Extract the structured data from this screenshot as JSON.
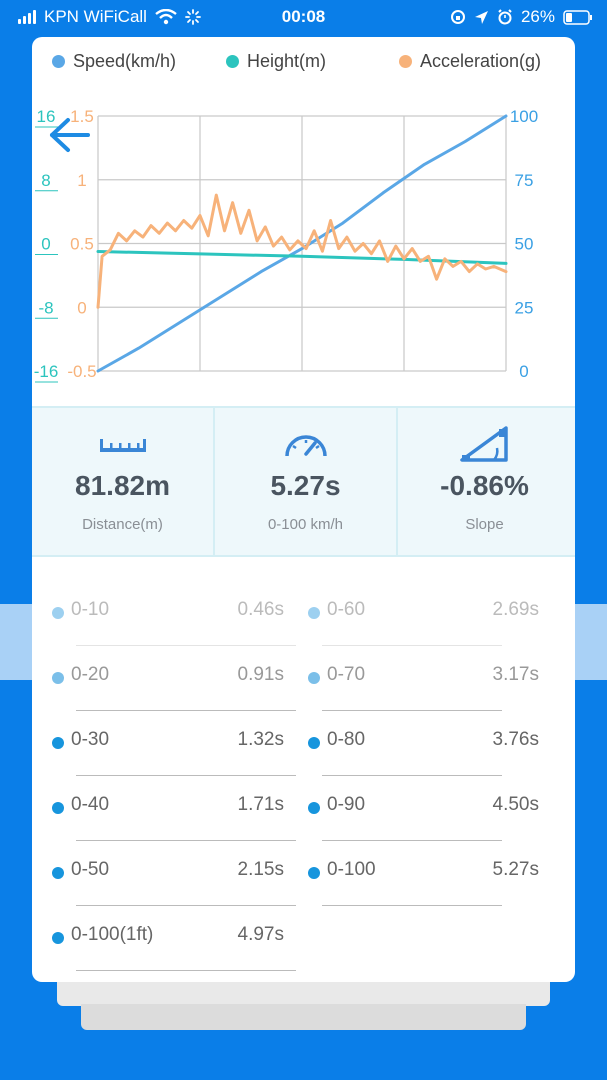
{
  "status_bar": {
    "carrier": "KPN WiFiCall",
    "time": "00:08",
    "battery": "26%"
  },
  "legend": [
    {
      "label": "Speed(km/h)",
      "color": "#5aa7e6"
    },
    {
      "label": "Height(m)",
      "color": "#2cc4be"
    },
    {
      "label": "Acceleration(g)",
      "color": "#f7b27a"
    }
  ],
  "chart_data": {
    "type": "line",
    "x_range": [
      0,
      100
    ],
    "axes": {
      "height_left": {
        "ticks": [
          "16",
          "8",
          "0",
          "-8",
          "-16"
        ],
        "range": [
          -16,
          16
        ],
        "color": "#2cc4be"
      },
      "acceleration_left": {
        "ticks": [
          "1.5",
          "1",
          "0.5",
          "0",
          "-0.5"
        ],
        "range": [
          -0.5,
          1.5
        ],
        "color": "#f7b27a"
      },
      "speed_right": {
        "ticks": [
          "100",
          "75",
          "50",
          "25",
          "0"
        ],
        "range": [
          0,
          100
        ],
        "color": "#3aa0e4"
      }
    },
    "grid": true,
    "series": [
      {
        "name": "Speed(km/h)",
        "axis": "speed_right",
        "color": "#5aa7e6",
        "x": [
          0,
          10,
          20,
          30,
          40,
          50,
          60,
          70,
          80,
          90,
          100
        ],
        "y": [
          0,
          9,
          19,
          29,
          39,
          48,
          58,
          70,
          81,
          90,
          100
        ]
      },
      {
        "name": "Height(m)",
        "axis": "height_left",
        "color": "#2cc4be",
        "x": [
          0,
          25,
          50,
          75,
          100
        ],
        "y": [
          -1.0,
          -1.3,
          -1.6,
          -2.0,
          -2.5
        ]
      },
      {
        "name": "Acceleration(g)",
        "axis": "acceleration_left",
        "color": "#f7b27a",
        "x": [
          0,
          1,
          3,
          5,
          7,
          9,
          11,
          13,
          15,
          17,
          19,
          21,
          23,
          25,
          27,
          29,
          31,
          33,
          35,
          37,
          39,
          41,
          43,
          45,
          47,
          49,
          51,
          53,
          55,
          57,
          59,
          61,
          63,
          65,
          67,
          69,
          71,
          73,
          75,
          77,
          79,
          81,
          83,
          85,
          87,
          89,
          91,
          93,
          95,
          97,
          100
        ],
        "y": [
          0.0,
          0.4,
          0.45,
          0.58,
          0.52,
          0.6,
          0.55,
          0.64,
          0.58,
          0.66,
          0.6,
          0.68,
          0.62,
          0.72,
          0.56,
          0.88,
          0.6,
          0.82,
          0.58,
          0.76,
          0.52,
          0.63,
          0.48,
          0.55,
          0.45,
          0.52,
          0.46,
          0.6,
          0.44,
          0.68,
          0.46,
          0.55,
          0.44,
          0.5,
          0.42,
          0.52,
          0.36,
          0.48,
          0.38,
          0.46,
          0.36,
          0.4,
          0.22,
          0.38,
          0.32,
          0.36,
          0.28,
          0.34,
          0.3,
          0.32,
          0.28
        ]
      }
    ]
  },
  "stats": [
    {
      "icon": "ruler-icon",
      "value": "81.82m",
      "label": "Distance(m)"
    },
    {
      "icon": "speedometer-icon",
      "value": "5.27s",
      "label": "0-100 km/h"
    },
    {
      "icon": "slope-icon",
      "value": "-0.86%",
      "label": "Slope"
    }
  ],
  "times_left": [
    {
      "range": "0-10",
      "time": "0.46s"
    },
    {
      "range": "0-20",
      "time": "0.91s"
    },
    {
      "range": "0-30",
      "time": "1.32s"
    },
    {
      "range": "0-40",
      "time": "1.71s"
    },
    {
      "range": "0-50",
      "time": "2.15s"
    },
    {
      "range": "0-100(1ft)",
      "time": "4.97s"
    }
  ],
  "times_right": [
    {
      "range": "0-60",
      "time": "2.69s"
    },
    {
      "range": "0-70",
      "time": "3.17s"
    },
    {
      "range": "0-80",
      "time": "3.76s"
    },
    {
      "range": "0-90",
      "time": "4.50s"
    },
    {
      "range": "0-100",
      "time": "5.27s"
    }
  ]
}
